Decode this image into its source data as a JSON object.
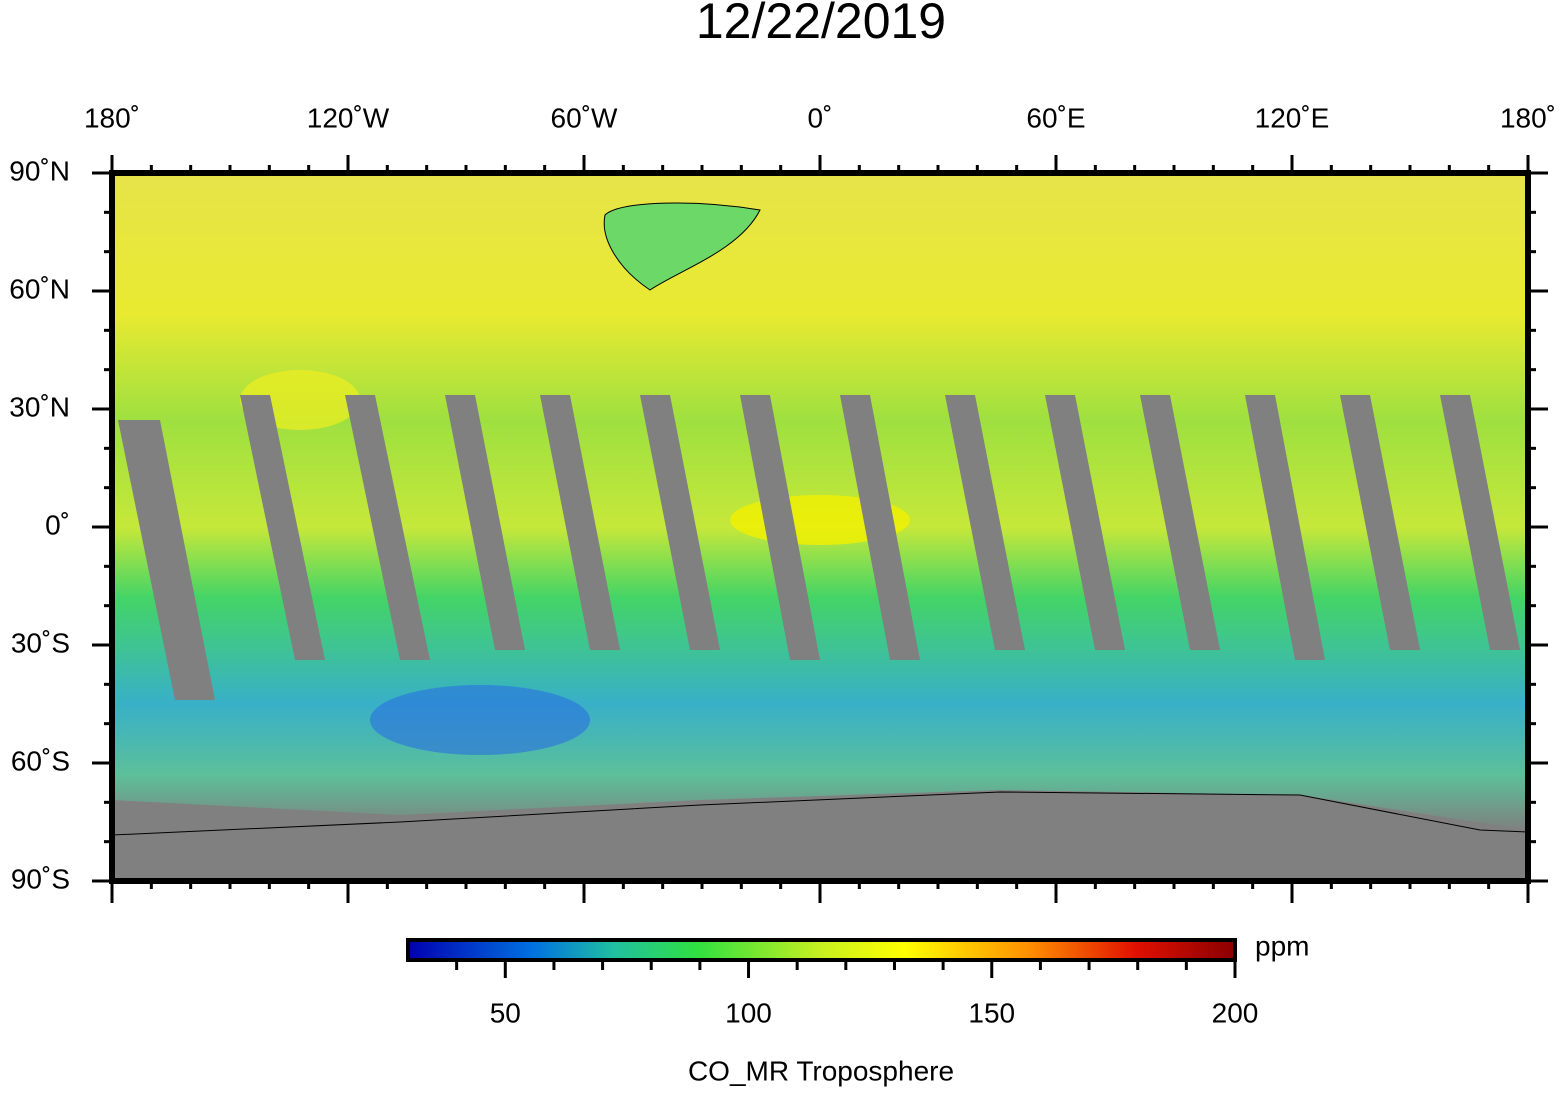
{
  "title": "12/22/2019",
  "map": {
    "xlim": [
      -180,
      180
    ],
    "ylim": [
      -90,
      90
    ],
    "xticks": [
      {
        "value": -180,
        "label": "180˚"
      },
      {
        "value": -120,
        "label": "120˚W"
      },
      {
        "value": -60,
        "label": "60˚W"
      },
      {
        "value": 0,
        "label": "0˚"
      },
      {
        "value": 60,
        "label": "60˚E"
      },
      {
        "value": 120,
        "label": "120˚E"
      },
      {
        "value": 180,
        "label": "180˚"
      }
    ],
    "yticks": [
      {
        "value": 90,
        "label": "90˚N"
      },
      {
        "value": 60,
        "label": "60˚N"
      },
      {
        "value": 30,
        "label": "30˚N"
      },
      {
        "value": 0,
        "label": "0˚"
      },
      {
        "value": -30,
        "label": "30˚S"
      },
      {
        "value": -60,
        "label": "60˚S"
      },
      {
        "value": -90,
        "label": "90˚S"
      }
    ],
    "xminor_ticks": [
      -170,
      -160,
      -150,
      -140,
      -130,
      -110,
      -100,
      -90,
      -80,
      -70,
      -50,
      -40,
      -30,
      -20,
      -10,
      10,
      20,
      30,
      40,
      50,
      70,
      80,
      90,
      100,
      110,
      130,
      140,
      150,
      160,
      170
    ],
    "yminor_ticks": [
      80,
      70,
      50,
      40,
      20,
      10,
      -10,
      -20,
      -40,
      -50,
      -70,
      -80
    ]
  },
  "colorbar": {
    "lim": [
      30,
      200
    ],
    "ticks": [
      50,
      100,
      150,
      200
    ],
    "minor_ticks": [
      40,
      60,
      70,
      80,
      90,
      110,
      120,
      130,
      140,
      160,
      170,
      180,
      190
    ],
    "unit": "ppm",
    "label": "CO_MR Troposphere"
  }
}
